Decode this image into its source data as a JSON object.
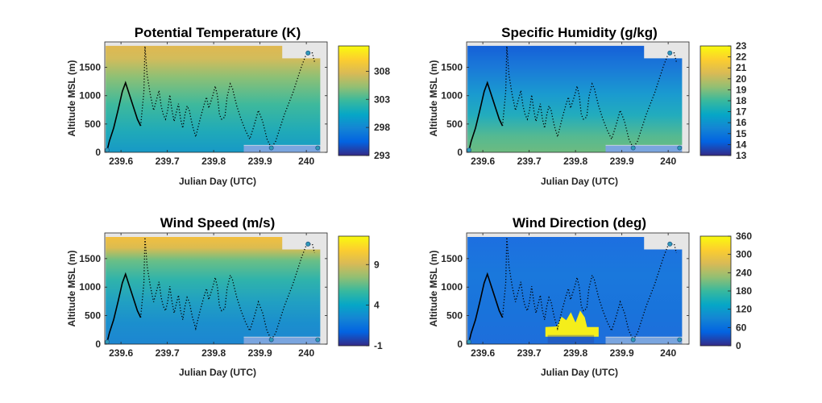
{
  "chart_data": [
    {
      "type": "heatmap",
      "title": "Potential Temperature (K)",
      "xlabel": "Julian Day (UTC)",
      "ylabel": "Altitude MSL (m)",
      "xlim": [
        239.565,
        240.045
      ],
      "ylim": [
        0,
        1950
      ],
      "x_ticks": [
        "239.6",
        "239.7",
        "239.8",
        "239.9",
        "240"
      ],
      "x_tick_values": [
        239.6,
        239.7,
        239.8,
        239.9,
        240.0
      ],
      "y_ticks": [
        "0",
        "500",
        "1000",
        "1500"
      ],
      "y_tick_values": [
        0,
        500,
        1000,
        1500
      ],
      "colorbar": {
        "ticks": [
          "293",
          "298",
          "303",
          "308"
        ],
        "tick_values": [
          293,
          298,
          303,
          308
        ],
        "range": [
          293,
          312.5
        ]
      },
      "field_description": "cool (~297-299 K) near surface increasing to warm (~307-309 K) above 1500 m",
      "flight_track": {
        "color": "#000000",
        "style": "solid then dotted"
      }
    },
    {
      "type": "heatmap",
      "title": "Specific Humidity (g/kg)",
      "xlabel": "Julian Day (UTC)",
      "ylabel": "Altitude MSL (m)",
      "xlim": [
        239.565,
        240.045
      ],
      "ylim": [
        0,
        1950
      ],
      "x_ticks": [
        "239.6",
        "239.7",
        "239.8",
        "239.9",
        "240"
      ],
      "x_tick_values": [
        239.6,
        239.7,
        239.8,
        239.9,
        240.0
      ],
      "y_ticks": [
        "0",
        "500",
        "1000",
        "1500"
      ],
      "y_tick_values": [
        0,
        500,
        1000,
        1500
      ],
      "colorbar": {
        "ticks": [
          "13",
          "14",
          "15",
          "16",
          "17",
          "18",
          "19",
          "20",
          "21",
          "22",
          "23"
        ],
        "tick_values": [
          13,
          14,
          15,
          16,
          17,
          18,
          19,
          20,
          21,
          22,
          23
        ],
        "range": [
          13,
          23
        ]
      },
      "field_description": "moist (~18-20 g/kg) near surface decreasing to dry (~14-15 g/kg) above 1500 m",
      "flight_track": {
        "color": "#000000",
        "style": "solid then dotted"
      }
    },
    {
      "type": "heatmap",
      "title": "Wind Speed (m/s)",
      "xlabel": "Julian Day (UTC)",
      "ylabel": "Altitude MSL (m)",
      "xlim": [
        239.565,
        240.045
      ],
      "ylim": [
        0,
        1950
      ],
      "x_ticks": [
        "239.6",
        "239.7",
        "239.8",
        "239.9",
        "240"
      ],
      "x_tick_values": [
        239.6,
        239.7,
        239.8,
        239.9,
        240.0
      ],
      "y_ticks": [
        "0",
        "500",
        "1000",
        "1500"
      ],
      "y_tick_values": [
        0,
        500,
        1000,
        1500
      ],
      "colorbar": {
        "ticks": [
          "-1",
          "4",
          "9"
        ],
        "tick_values": [
          -1,
          4,
          9
        ],
        "range": [
          -1,
          12.5
        ]
      },
      "field_description": "weak winds (~3-5 m/s) below 1000 m, stronger (~10-12 m/s) near 1800 m",
      "flight_track": {
        "color": "#000000",
        "style": "solid then dotted"
      }
    },
    {
      "type": "heatmap",
      "title": "Wind Direction (deg)",
      "xlabel": "Julian Day (UTC)",
      "ylabel": "Altitude MSL (m)",
      "xlim": [
        239.565,
        240.045
      ],
      "ylim": [
        0,
        1950
      ],
      "x_ticks": [
        "239.6",
        "239.7",
        "239.8",
        "239.9",
        "240"
      ],
      "x_tick_values": [
        239.6,
        239.7,
        239.8,
        239.9,
        240.0
      ],
      "y_ticks": [
        "0",
        "500",
        "1000",
        "1500"
      ],
      "y_tick_values": [
        0,
        500,
        1000,
        1500
      ],
      "colorbar": {
        "ticks": [
          "0",
          "60",
          "120",
          "180",
          "240",
          "300",
          "360"
        ],
        "tick_values": [
          0,
          60,
          120,
          180,
          240,
          300,
          360
        ],
        "range": [
          0,
          360
        ]
      },
      "field_description": "mostly ~50-80 deg throughout, with a ~360 deg patch near 239.74-239.85 below 600 m",
      "flight_track": {
        "color": "#000000",
        "style": "solid then dotted"
      }
    }
  ]
}
